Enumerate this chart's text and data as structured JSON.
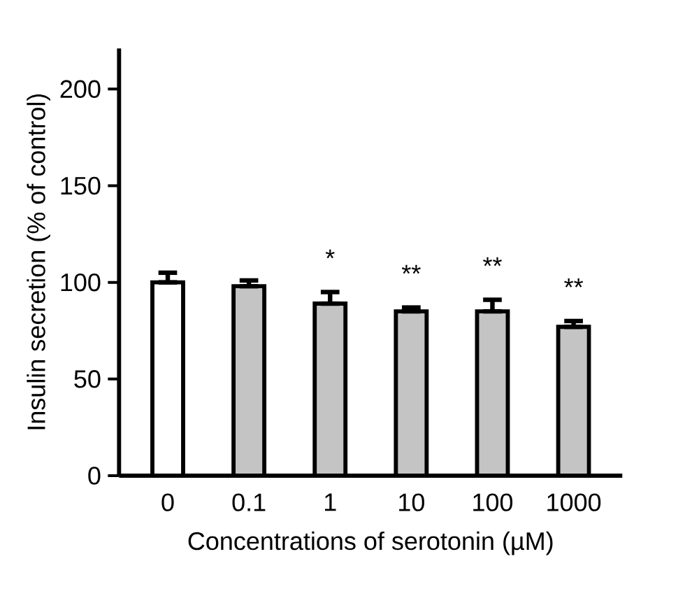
{
  "chart_data": {
    "type": "bar",
    "xlabel": "Concentrations of serotonin (µM)",
    "ylabel": "Insulin secretion (% of control)",
    "categories": [
      "0",
      "0.1",
      "1",
      "10",
      "100",
      "1000"
    ],
    "values": [
      100,
      98,
      89,
      85,
      85,
      77
    ],
    "errors": [
      [
        100,
        105
      ],
      [
        98,
        101
      ],
      [
        89,
        95
      ],
      [
        85,
        87
      ],
      [
        85,
        91
      ],
      [
        77,
        80
      ]
    ],
    "colors": [
      "#ffffff",
      "#c4c4c4",
      "#c4c4c4",
      "#c4c4c4",
      "#c4c4c4",
      "#c4c4c4"
    ],
    "ylim": [
      0,
      221
    ],
    "yticks": [
      0,
      50,
      100,
      150,
      200
    ],
    "grid": false,
    "annotations": [
      "*",
      "**",
      "**",
      "**"
    ]
  }
}
